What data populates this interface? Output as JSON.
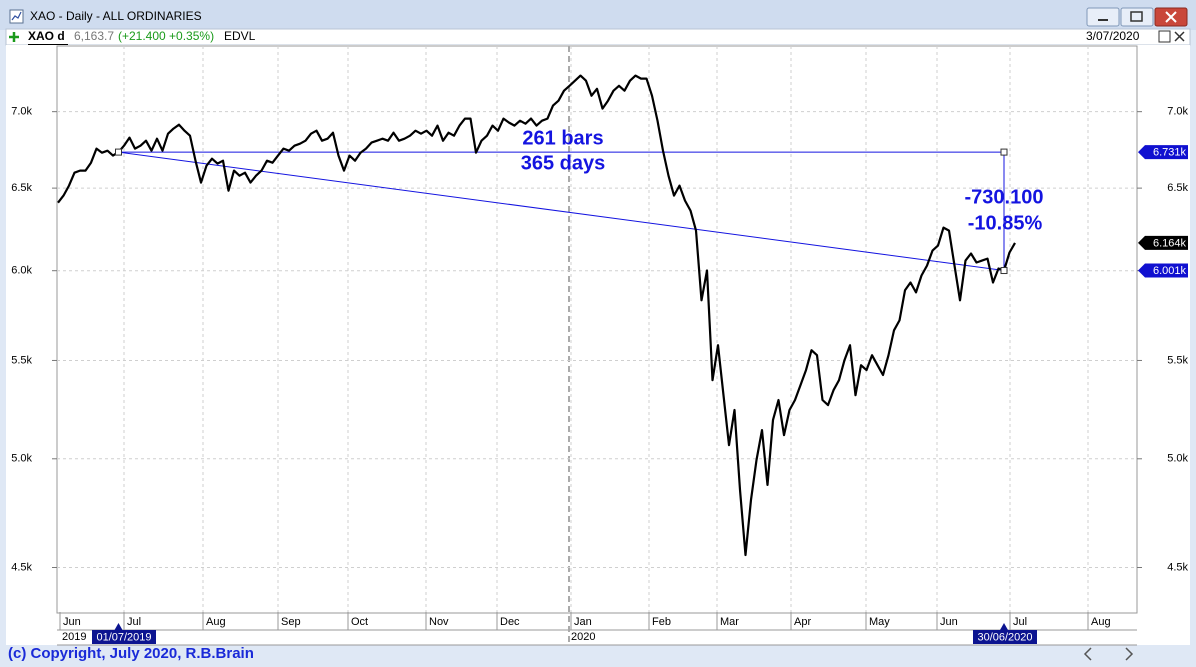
{
  "window": {
    "title": "XAO - Daily - ALL ORDINARIES"
  },
  "header": {
    "price": "6,163.7",
    "change": "(+21.400 +0.35%)",
    "indicator": "EDVL",
    "date": "3/07/2020"
  },
  "footer": {
    "copyright": "(c) Copyright, July 2020, R.B.Brain"
  },
  "chart_data": {
    "type": "line",
    "log_scale": true,
    "grid": true,
    "ylim": [
      4310,
      7460
    ],
    "yticks": [
      {
        "value": 4500,
        "label": "4.5k"
      },
      {
        "value": 5000,
        "label": "5.0k"
      },
      {
        "value": 5500,
        "label": "5.5k"
      },
      {
        "value": 6000,
        "label": "6.0k"
      },
      {
        "value": 6500,
        "label": "6.5k"
      },
      {
        "value": 7000,
        "label": "7.0k"
      }
    ],
    "months": [
      "Jun",
      "Jul",
      "Aug",
      "Sep",
      "Oct",
      "Nov",
      "Dec",
      "Jan",
      "Feb",
      "Mar",
      "Apr",
      "May",
      "Jun",
      "Jul",
      "Aug"
    ],
    "years": [
      "2019",
      "2020"
    ],
    "series": [
      {
        "name": "XAO d",
        "color": "#000000",
        "values": [
          6409,
          6453,
          6516,
          6598,
          6611,
          6611,
          6662,
          6754,
          6727,
          6740,
          6708,
          6731,
          6773,
          6826,
          6754,
          6773,
          6806,
          6740,
          6819,
          6740,
          6852,
          6886,
          6912,
          6872,
          6839,
          6675,
          6535,
          6643,
          6688,
          6656,
          6675,
          6484,
          6611,
          6579,
          6598,
          6535,
          6579,
          6611,
          6675,
          6662,
          6708,
          6754,
          6740,
          6773,
          6786,
          6806,
          6852,
          6872,
          6806,
          6819,
          6859,
          6708,
          6611,
          6708,
          6675,
          6727,
          6754,
          6793,
          6806,
          6819,
          6806,
          6859,
          6806,
          6819,
          6839,
          6872,
          6852,
          6872,
          6839,
          6906,
          6806,
          6859,
          6839,
          6906,
          6953,
          6953,
          6727,
          6806,
          6839,
          6906,
          6872,
          6953,
          6926,
          6906,
          6939,
          6919,
          6953,
          6906,
          6939,
          6953,
          7041,
          7075,
          7144,
          7178,
          7213,
          7249,
          7213,
          7109,
          7157,
          7021,
          7075,
          7144,
          7178,
          7144,
          7213,
          7249,
          7228,
          7228,
          7109,
          6939,
          6740,
          6579,
          6453,
          6516,
          6422,
          6360,
          6238,
          5830,
          6001,
          5396,
          5582,
          5318,
          5067,
          5242,
          4852,
          4555,
          4805,
          4994,
          5141,
          4875,
          5192,
          5293,
          5116,
          5242,
          5293,
          5370,
          5449,
          5555,
          5528,
          5293,
          5267,
          5344,
          5396,
          5502,
          5582,
          5318,
          5475,
          5449,
          5528,
          5475,
          5423,
          5528,
          5663,
          5718,
          5887,
          5932,
          5875,
          5972,
          6030,
          6118,
          6148,
          6256,
          6238,
          6030,
          5830,
          6059,
          6101,
          6048,
          6059,
          6071,
          5932,
          6013,
          6001,
          6107,
          6163.7
        ]
      }
    ],
    "price_labels": [
      {
        "value": 6731,
        "label": "6.731k",
        "color": "#1010d0"
      },
      {
        "value": 6164,
        "label": "6.164k",
        "color": "#000000"
      },
      {
        "value": 6001,
        "label": "6.001k",
        "color": "#1010d0"
      }
    ],
    "measure": {
      "bars_label": "261 bars",
      "days_label": "365 days",
      "change_label": "-730.100",
      "percent_label": "-10.85%",
      "start_date": "01/07/2019",
      "end_date": "30/06/2020",
      "color": "#1414e0"
    }
  }
}
